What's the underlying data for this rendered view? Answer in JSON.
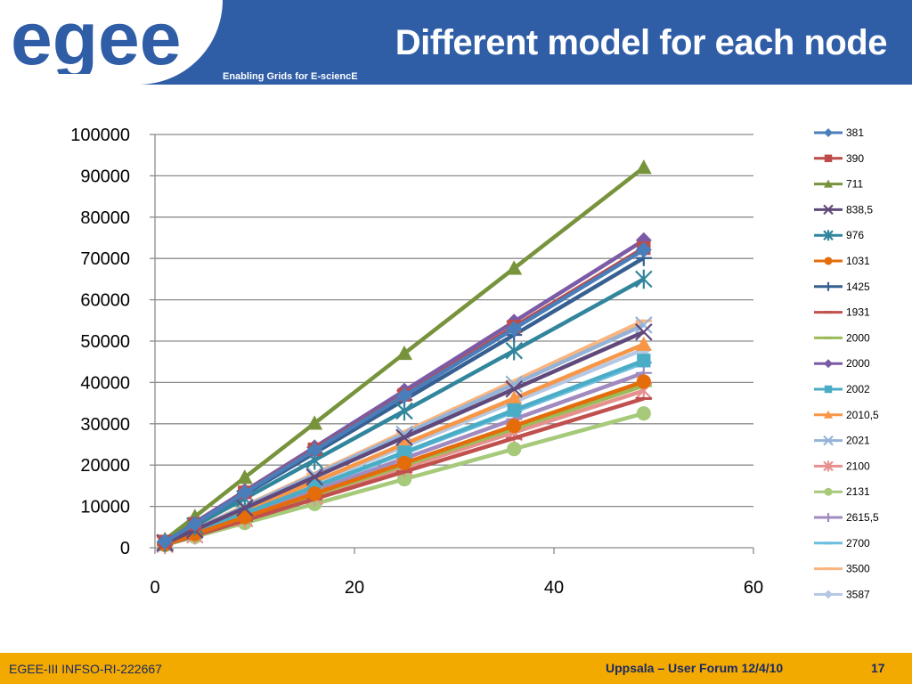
{
  "header": {
    "logo_text": "egee",
    "title": "Different model for each node",
    "tagline": "Enabling Grids for E-sciencE",
    "background_color": "#2F5DA6"
  },
  "footer": {
    "left": "EGEE-III INFSO-RI-222667",
    "right": "Uppsala – User Forum 12/4/10",
    "page": "17",
    "background_color": "#F2A900"
  },
  "chart_data": {
    "type": "line",
    "title": "",
    "xlabel": "",
    "ylabel": "",
    "xlim": [
      0,
      60
    ],
    "ylim": [
      0,
      100000
    ],
    "x_ticks": [
      "0",
      "20",
      "40",
      "60"
    ],
    "y_ticks": [
      "0",
      "10000",
      "20000",
      "30000",
      "40000",
      "50000",
      "60000",
      "70000",
      "80000",
      "90000",
      "100000"
    ],
    "grid": "horizontal",
    "legend_position": "right",
    "x": [
      1,
      4,
      9,
      16,
      25,
      36,
      49
    ],
    "series": [
      {
        "name": "381",
        "color": "#4A7EBB",
        "marker": "diamond",
        "values": [
          1500,
          5800,
          13300,
          23600,
          36800,
          53000,
          72100
        ]
      },
      {
        "name": "390",
        "color": "#BE4B48",
        "marker": "square",
        "values": [
          1500,
          5800,
          13400,
          23800,
          37000,
          53500,
          72500
        ]
      },
      {
        "name": "711",
        "color": "#77933C",
        "marker": "triangle",
        "values": [
          1900,
          7500,
          17000,
          30100,
          47000,
          67600,
          92000
        ]
      },
      {
        "name": "838,5",
        "color": "#604A7B",
        "marker": "x",
        "values": [
          1100,
          4300,
          9600,
          17100,
          26700,
          38400,
          52200
        ]
      },
      {
        "name": "976",
        "color": "#31859C",
        "marker": "star",
        "values": [
          1300,
          5300,
          11900,
          21200,
          33100,
          47700,
          65000
        ]
      },
      {
        "name": "1031",
        "color": "#E46C0A",
        "marker": "circle",
        "values": [
          800,
          3300,
          7400,
          13100,
          20500,
          29500,
          40200
        ]
      },
      {
        "name": "1425",
        "color": "#376092",
        "marker": "plus",
        "values": [
          1400,
          5700,
          12900,
          22900,
          35800,
          51500,
          70100
        ]
      },
      {
        "name": "1931",
        "color": "#C0504D",
        "marker": "dash",
        "values": [
          750,
          2950,
          6600,
          11800,
          18400,
          26500,
          36100
        ]
      },
      {
        "name": "2000",
        "color": "#9BBB59",
        "marker": "dash",
        "values": [
          800,
          3200,
          7200,
          12800,
          20000,
          28800,
          39200
        ]
      },
      {
        "name": "2000",
        "color": "#7B5BA6",
        "marker": "diamond",
        "values": [
          1550,
          6100,
          13700,
          24300,
          38000,
          54700,
          74400
        ]
      },
      {
        "name": "2002",
        "color": "#4BACC6",
        "marker": "square",
        "values": [
          900,
          3700,
          8300,
          14800,
          23100,
          33300,
          45300
        ]
      },
      {
        "name": "2010,5",
        "color": "#F79646",
        "marker": "triangle",
        "values": [
          1000,
          4000,
          9000,
          16000,
          25100,
          36100,
          49200
        ]
      },
      {
        "name": "2021",
        "color": "#95B3D7",
        "marker": "x",
        "values": [
          1100,
          4400,
          9900,
          17600,
          27500,
          39600,
          53900
        ]
      },
      {
        "name": "2100",
        "color": "#E6908E",
        "marker": "star",
        "values": [
          780,
          3100,
          7000,
          12400,
          19400,
          27900,
          38000
        ]
      },
      {
        "name": "2131",
        "color": "#A6C97A",
        "marker": "circle",
        "values": [
          670,
          2650,
          6000,
          10600,
          16600,
          23900,
          32500
        ]
      },
      {
        "name": "2615,5",
        "color": "#A18ABF",
        "marker": "plus",
        "values": [
          850,
          3450,
          7800,
          13800,
          21600,
          31100,
          42300
        ]
      },
      {
        "name": "2700",
        "color": "#6CBEE0",
        "marker": "dash",
        "values": [
          920,
          3650,
          8200,
          14600,
          22900,
          32900,
          44800
        ]
      },
      {
        "name": "3500",
        "color": "#FAB47F",
        "marker": "dash",
        "values": [
          1120,
          4500,
          10100,
          17900,
          28000,
          40300,
          54900
        ]
      },
      {
        "name": "3587",
        "color": "#B4C8E4",
        "marker": "diamond",
        "values": [
          1000,
          3900,
          8800,
          15700,
          24500,
          35300,
          48000
        ]
      }
    ]
  }
}
